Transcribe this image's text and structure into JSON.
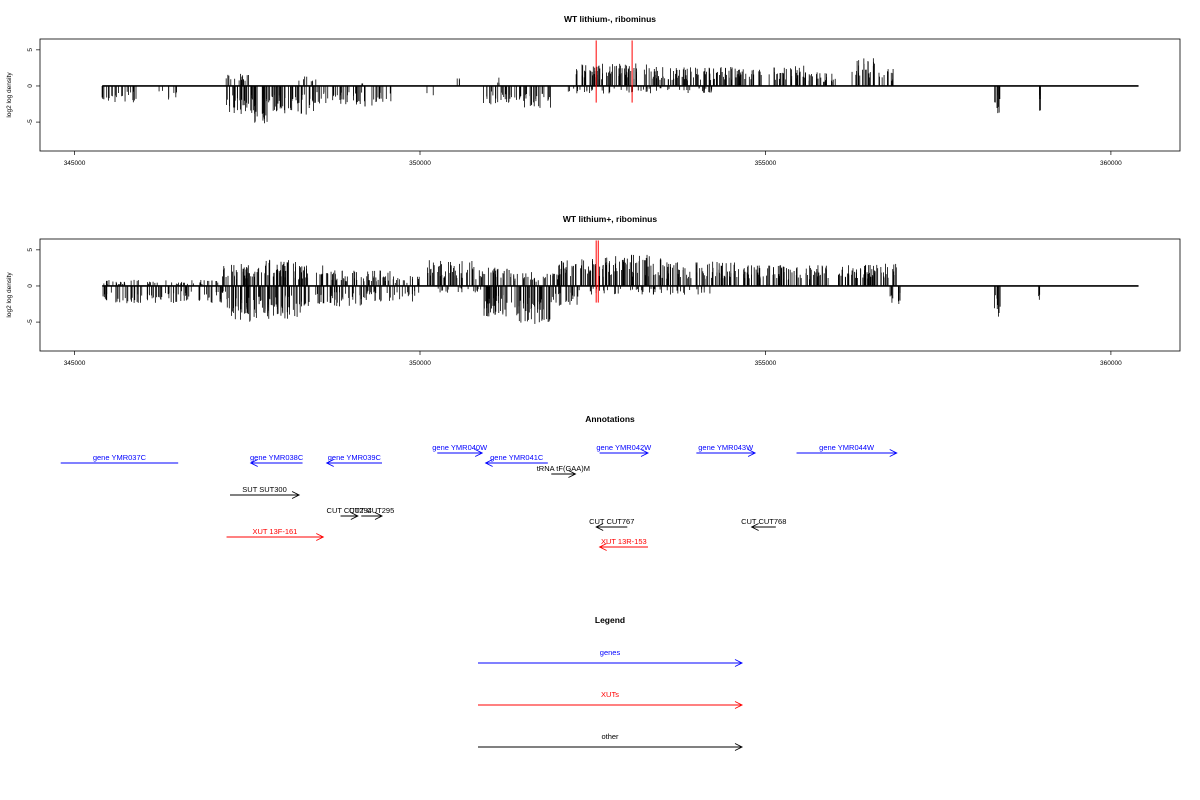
{
  "colors": {
    "gene": "#0000ff",
    "xut": "#ff0000",
    "other": "#000000",
    "highlight": "#ff0000"
  },
  "chart_data": [
    {
      "type": "bar",
      "title": "WT lithium-, ribominus",
      "ylabel": "log2 log density",
      "xlim": [
        344500,
        361000
      ],
      "ylim": [
        -9,
        6.5
      ],
      "xticks": [
        "345000",
        "350000",
        "355000",
        "360000"
      ],
      "yticks": [
        "5",
        "0",
        "-5"
      ],
      "baseline": [
        345400,
        360400
      ],
      "highlight_x": [
        352550,
        353070
      ],
      "segments": {
        "pos": [
          [
            347150,
            347550,
            1.4,
            0.45
          ],
          [
            348200,
            348500,
            1.2,
            0.3
          ],
          [
            349100,
            349200,
            0.8,
            0.2
          ],
          [
            350500,
            350600,
            1.5,
            0.3
          ],
          [
            351100,
            351200,
            1.0,
            0.3
          ],
          [
            352250,
            353350,
            2.6,
            0.8
          ],
          [
            353350,
            354950,
            2.2,
            0.8
          ],
          [
            355050,
            355600,
            2.4,
            0.8
          ],
          [
            355600,
            356050,
            1.6,
            0.6
          ],
          [
            356250,
            356600,
            3.2,
            0.8
          ],
          [
            356600,
            356850,
            2.0,
            0.6
          ]
        ],
        "neg": [
          [
            345350,
            345900,
            -2.0,
            0.5
          ],
          [
            346200,
            346500,
            -1.6,
            0.3
          ],
          [
            347200,
            347600,
            -3.5,
            0.9
          ],
          [
            347600,
            347850,
            -4.5,
            1.0
          ],
          [
            347850,
            348500,
            -3.4,
            0.9
          ],
          [
            348500,
            349100,
            -2.2,
            0.6
          ],
          [
            349100,
            349600,
            -2.4,
            0.5
          ],
          [
            350100,
            350200,
            -1.2,
            0.2
          ],
          [
            350900,
            351500,
            -2.2,
            0.6
          ],
          [
            351500,
            351900,
            -2.6,
            0.7
          ],
          [
            352100,
            354300,
            -0.9,
            0.3
          ],
          [
            358300,
            358400,
            -3.2,
            0.9
          ],
          [
            358950,
            359000,
            -3.4,
            1.0
          ]
        ]
      }
    },
    {
      "type": "bar",
      "title": "WT lithium+, ribominus",
      "ylabel": "log2 log density",
      "xlim": [
        344500,
        361000
      ],
      "ylim": [
        -9,
        6.5
      ],
      "xticks": [
        "345000",
        "350000",
        "355000",
        "360000"
      ],
      "yticks": [
        "5",
        "0",
        "-5"
      ],
      "baseline": [
        345400,
        360400
      ],
      "highlight_x": [
        352550,
        352580
      ],
      "segments": {
        "pos": [
          [
            345400,
            347100,
            0.7,
            0.4
          ],
          [
            347100,
            347600,
            2.6,
            0.9
          ],
          [
            347600,
            348200,
            3.2,
            0.9
          ],
          [
            348200,
            348600,
            2.6,
            0.7
          ],
          [
            348600,
            349600,
            1.8,
            0.7
          ],
          [
            349600,
            350000,
            1.2,
            0.5
          ],
          [
            350100,
            350800,
            3.0,
            0.8
          ],
          [
            350800,
            351300,
            2.2,
            0.7
          ],
          [
            351300,
            352000,
            1.6,
            0.6
          ],
          [
            352000,
            352600,
            3.2,
            0.8
          ],
          [
            352600,
            353500,
            3.6,
            0.9
          ],
          [
            353500,
            354600,
            2.8,
            0.8
          ],
          [
            354600,
            355800,
            2.4,
            0.8
          ],
          [
            355800,
            356600,
            2.6,
            0.8
          ],
          [
            356600,
            356900,
            2.6,
            0.8
          ]
        ],
        "neg": [
          [
            345400,
            347200,
            -2.0,
            0.6
          ],
          [
            347200,
            347700,
            -4.2,
            1.0
          ],
          [
            347700,
            348300,
            -3.8,
            1.0
          ],
          [
            348300,
            349200,
            -2.4,
            0.6
          ],
          [
            349200,
            350000,
            -1.8,
            0.5
          ],
          [
            350200,
            350900,
            -0.8,
            0.3
          ],
          [
            350900,
            351400,
            -3.6,
            0.9
          ],
          [
            351400,
            351900,
            -4.4,
            1.0
          ],
          [
            351900,
            352300,
            -2.4,
            0.6
          ],
          [
            352300,
            354200,
            -1.0,
            0.3
          ],
          [
            356800,
            356950,
            -2.4,
            0.7
          ],
          [
            358300,
            358400,
            -3.6,
            0.9
          ],
          [
            358950,
            359000,
            -1.8,
            0.6
          ]
        ]
      }
    }
  ],
  "annotations": {
    "title": "Annotations",
    "items": [
      {
        "label": "gene YMR037C",
        "kind": "gene",
        "start": 346500,
        "end": 344800,
        "dir": "none",
        "row": 0.92
      },
      {
        "label": "gene YMR038C",
        "kind": "gene",
        "start": 348300,
        "end": 347550,
        "dir": "left",
        "row": 0.92
      },
      {
        "label": "gene YMR039C",
        "kind": "gene",
        "start": 349450,
        "end": 348650,
        "dir": "left",
        "row": 0.92
      },
      {
        "label": "gene YMR040W",
        "kind": "gene",
        "start": 350250,
        "end": 350900,
        "dir": "right",
        "row": 1.16
      },
      {
        "label": "gene YMR041C",
        "kind": "gene",
        "start": 351850,
        "end": 350950,
        "dir": "left",
        "row": 0.92
      },
      {
        "label": "gene YMR042W",
        "kind": "gene",
        "start": 352600,
        "end": 353300,
        "dir": "right",
        "row": 1.16
      },
      {
        "label": "gene YMR043W",
        "kind": "gene",
        "start": 354000,
        "end": 354850,
        "dir": "right",
        "row": 1.16
      },
      {
        "label": "gene YMR044W",
        "kind": "gene",
        "start": 355450,
        "end": 356900,
        "dir": "right",
        "row": 1.16
      },
      {
        "label": "tRNA tF(GAA)M",
        "kind": "other",
        "start": 351900,
        "end": 352250,
        "dir": "right",
        "row": 0.0
      },
      {
        "label": "SUT SUT300",
        "kind": "other",
        "start": 347250,
        "end": 348250,
        "dir": "right",
        "row": 0.0
      },
      {
        "label": "CUT CUT294",
        "kind": "other",
        "start": 348850,
        "end": 349100,
        "dir": "right",
        "row": 0.0
      },
      {
        "label": "CUT CUT295",
        "kind": "other",
        "start": 349150,
        "end": 349450,
        "dir": "right",
        "row": 0.0
      },
      {
        "label": "CUT CUT767",
        "kind": "other",
        "start": 353000,
        "end": 352550,
        "dir": "left",
        "row": 0.0
      },
      {
        "label": "CUT CUT768",
        "kind": "other",
        "start": 355150,
        "end": 354800,
        "dir": "left",
        "row": 0.0
      },
      {
        "label": "XUT 13F-161",
        "kind": "xut",
        "start": 347200,
        "end": 348600,
        "dir": "right",
        "row": 0.0
      },
      {
        "label": "XUT 13R-153",
        "kind": "xut",
        "start": 353300,
        "end": 352600,
        "dir": "left",
        "row": 0.0
      }
    ]
  },
  "legend": {
    "title": "Legend",
    "items": [
      {
        "label": "genes",
        "kind": "gene"
      },
      {
        "label": "XUTs",
        "kind": "xut"
      },
      {
        "label": "other",
        "kind": "other"
      }
    ]
  }
}
